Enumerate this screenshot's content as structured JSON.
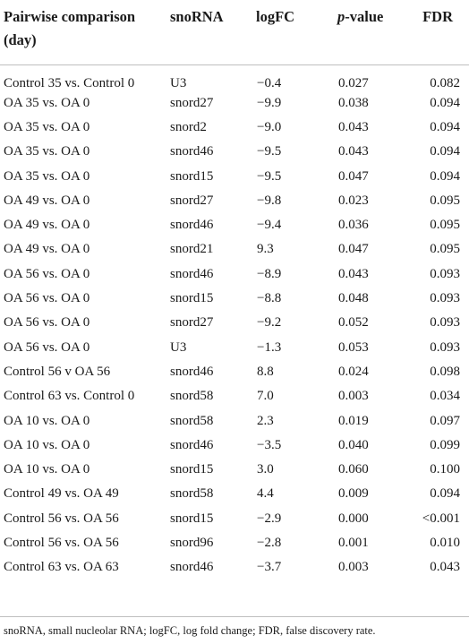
{
  "table": {
    "headers": {
      "comparison": "Pairwise comparison (day)",
      "snorna": "snoRNA",
      "logfc": "logFC",
      "pvalue_prefix": "p",
      "pvalue_suffix": "-value",
      "fdr": "FDR"
    },
    "rows": [
      {
        "comparison": "Control 35 vs. Control 0",
        "snorna": "U3",
        "logfc": "−0.4",
        "pvalue": "0.027",
        "fdr": "0.082"
      },
      {
        "comparison": "OA 35 vs. OA 0",
        "snorna": "snord27",
        "logfc": "−9.9",
        "pvalue": "0.038",
        "fdr": "0.094"
      },
      {
        "comparison": "OA 35 vs. OA 0",
        "snorna": "snord2",
        "logfc": "−9.0",
        "pvalue": "0.043",
        "fdr": "0.094"
      },
      {
        "comparison": "OA 35 vs. OA 0",
        "snorna": "snord46",
        "logfc": "−9.5",
        "pvalue": "0.043",
        "fdr": "0.094"
      },
      {
        "comparison": "OA 35 vs. OA 0",
        "snorna": "snord15",
        "logfc": "−9.5",
        "pvalue": "0.047",
        "fdr": "0.094"
      },
      {
        "comparison": "OA 49 vs. OA 0",
        "snorna": "snord27",
        "logfc": "−9.8",
        "pvalue": "0.023",
        "fdr": "0.095"
      },
      {
        "comparison": "OA 49 vs. OA 0",
        "snorna": "snord46",
        "logfc": "−9.4",
        "pvalue": "0.036",
        "fdr": "0.095"
      },
      {
        "comparison": "OA 49 vs. OA 0",
        "snorna": "snord21",
        "logfc": "9.3",
        "pvalue": "0.047",
        "fdr": "0.095"
      },
      {
        "comparison": "OA 56 vs. OA 0",
        "snorna": "snord46",
        "logfc": "−8.9",
        "pvalue": "0.043",
        "fdr": "0.093"
      },
      {
        "comparison": "OA 56 vs. OA 0",
        "snorna": "snord15",
        "logfc": "−8.8",
        "pvalue": "0.048",
        "fdr": "0.093"
      },
      {
        "comparison": "OA 56 vs. OA 0",
        "snorna": "snord27",
        "logfc": "−9.2",
        "pvalue": "0.052",
        "fdr": "0.093"
      },
      {
        "comparison": "OA 56 vs. OA 0",
        "snorna": "U3",
        "logfc": "−1.3",
        "pvalue": "0.053",
        "fdr": "0.093"
      },
      {
        "comparison": "Control 56 v OA 56",
        "snorna": "snord46",
        "logfc": "8.8",
        "pvalue": "0.024",
        "fdr": "0.098"
      },
      {
        "comparison": "Control 63 vs. Control 0",
        "snorna": "snord58",
        "logfc": "7.0",
        "pvalue": "0.003",
        "fdr": "0.034"
      },
      {
        "comparison": "OA 10 vs. OA 0",
        "snorna": "snord58",
        "logfc": "2.3",
        "pvalue": "0.019",
        "fdr": "0.097"
      },
      {
        "comparison": "OA 10 vs. OA 0",
        "snorna": "snord46",
        "logfc": "−3.5",
        "pvalue": "0.040",
        "fdr": "0.099"
      },
      {
        "comparison": "OA 10 vs. OA 0",
        "snorna": "snord15",
        "logfc": "3.0",
        "pvalue": "0.060",
        "fdr": "0.100"
      },
      {
        "comparison": "Control 49 vs. OA 49",
        "snorna": "snord58",
        "logfc": "4.4",
        "pvalue": "0.009",
        "fdr": "0.094"
      },
      {
        "comparison": "Control 56 vs. OA 56",
        "snorna": "snord15",
        "logfc": "−2.9",
        "pvalue": "0.000",
        "fdr": "<0.001"
      },
      {
        "comparison": "Control 56 vs. OA 56",
        "snorna": "snord96",
        "logfc": "−2.8",
        "pvalue": "0.001",
        "fdr": "0.010"
      },
      {
        "comparison": "Control 63 vs. OA 63",
        "snorna": "snord46",
        "logfc": "−3.7",
        "pvalue": "0.003",
        "fdr": "0.043"
      }
    ]
  },
  "footnote": "snoRNA, small nucleolar RNA; logFC, log fold change; FDR, false discovery rate."
}
